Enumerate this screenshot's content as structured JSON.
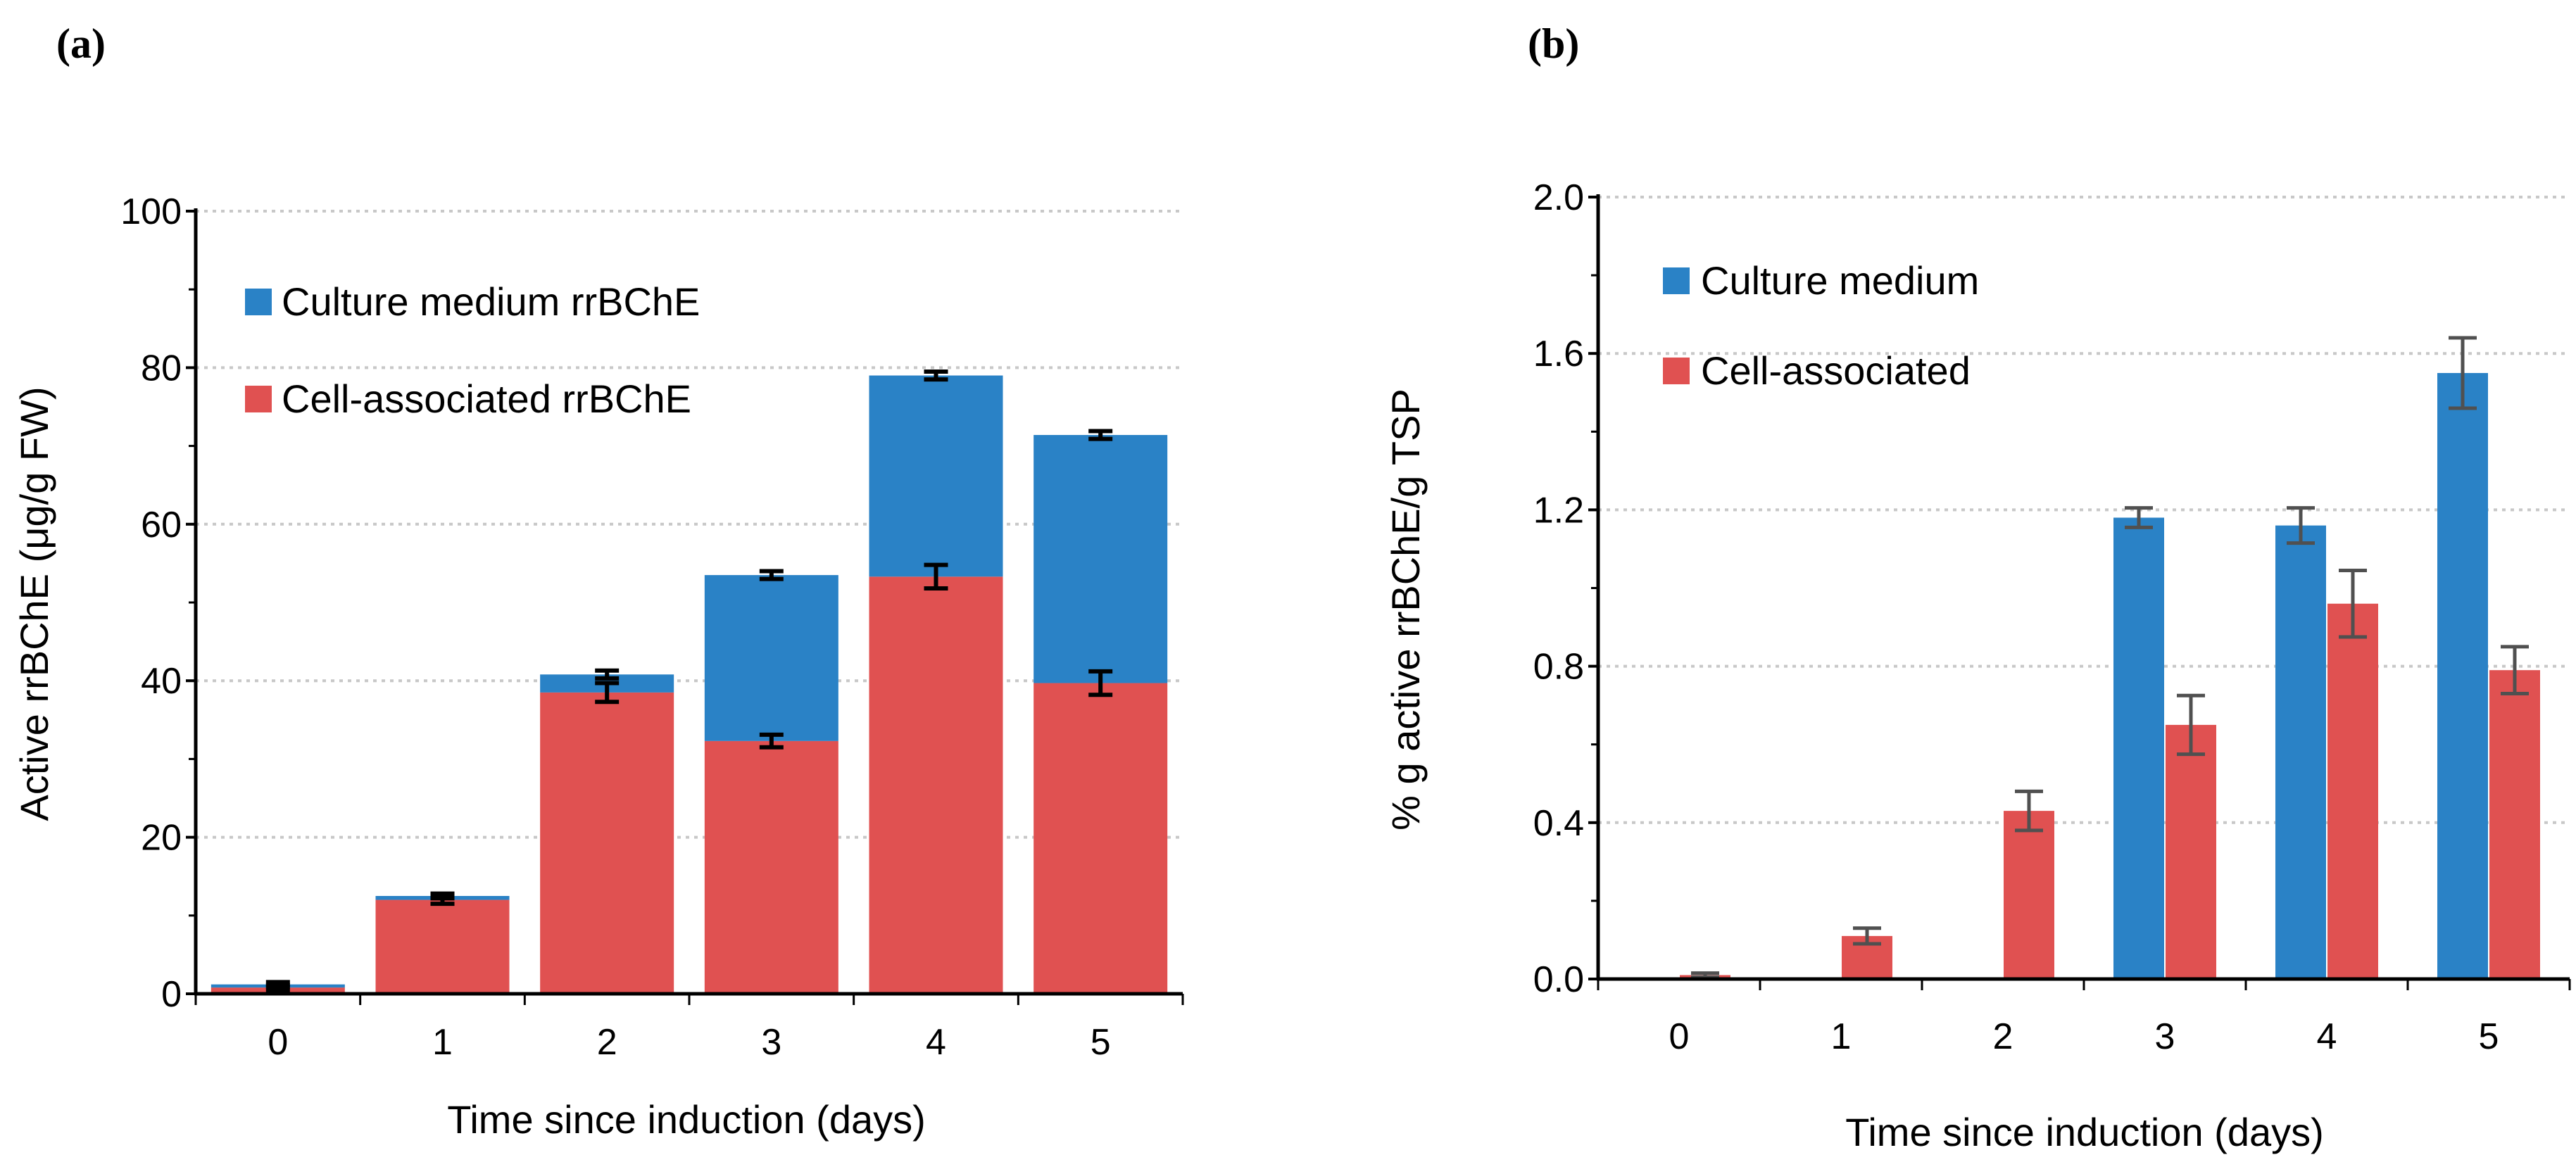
{
  "chart_data": [
    {
      "panel": "(a)",
      "type": "bar",
      "stacked": true,
      "xlabel": "Time since induction (days)",
      "ylabel": "Active rrBChE (μg/g FW)",
      "categories": [
        "0",
        "1",
        "2",
        "3",
        "4",
        "5"
      ],
      "ylim": [
        0,
        100
      ],
      "yticks": [
        "0",
        "20",
        "40",
        "60",
        "80",
        "100"
      ],
      "grid": true,
      "legend_position": "top-left",
      "series": [
        {
          "name": "Cell-associated rrBChE",
          "color": "#e05151",
          "values": [
            0.8,
            12,
            38.5,
            32.3,
            53.3,
            39.7
          ],
          "errors": [
            0.3,
            0.5,
            1.2,
            0.8,
            1.5,
            1.5
          ]
        },
        {
          "name": "Culture medium rrBChE",
          "color": "#2a82c6",
          "values": [
            0.4,
            0.5,
            2.3,
            21.2,
            25.7,
            31.7
          ],
          "errors": [
            0.3,
            0.3,
            0.5,
            0.5,
            0.5,
            0.5
          ]
        }
      ]
    },
    {
      "panel": "(b)",
      "type": "bar",
      "stacked": false,
      "xlabel": "Time since induction (days)",
      "ylabel": "%  g active rrBChE/g TSP",
      "categories": [
        "0",
        "1",
        "2",
        "3",
        "4",
        "5"
      ],
      "ylim": [
        0,
        2.0
      ],
      "yticks": [
        "0.0",
        "0.4",
        "0.8",
        "1.2",
        "1.6",
        "2.0"
      ],
      "grid": true,
      "legend_position": "top-left",
      "series": [
        {
          "name": "Culture medium",
          "color": "#2a82c6",
          "values": [
            0,
            0,
            0,
            1.18,
            1.16,
            1.55
          ],
          "errors": [
            0,
            0,
            0,
            0.025,
            0.045,
            0.09
          ]
        },
        {
          "name": "Cell-associated",
          "color": "#e05151",
          "values": [
            0.01,
            0.11,
            0.43,
            0.65,
            0.96,
            0.79
          ],
          "errors": [
            0.005,
            0.02,
            0.05,
            0.075,
            0.085,
            0.06
          ]
        }
      ]
    }
  ]
}
